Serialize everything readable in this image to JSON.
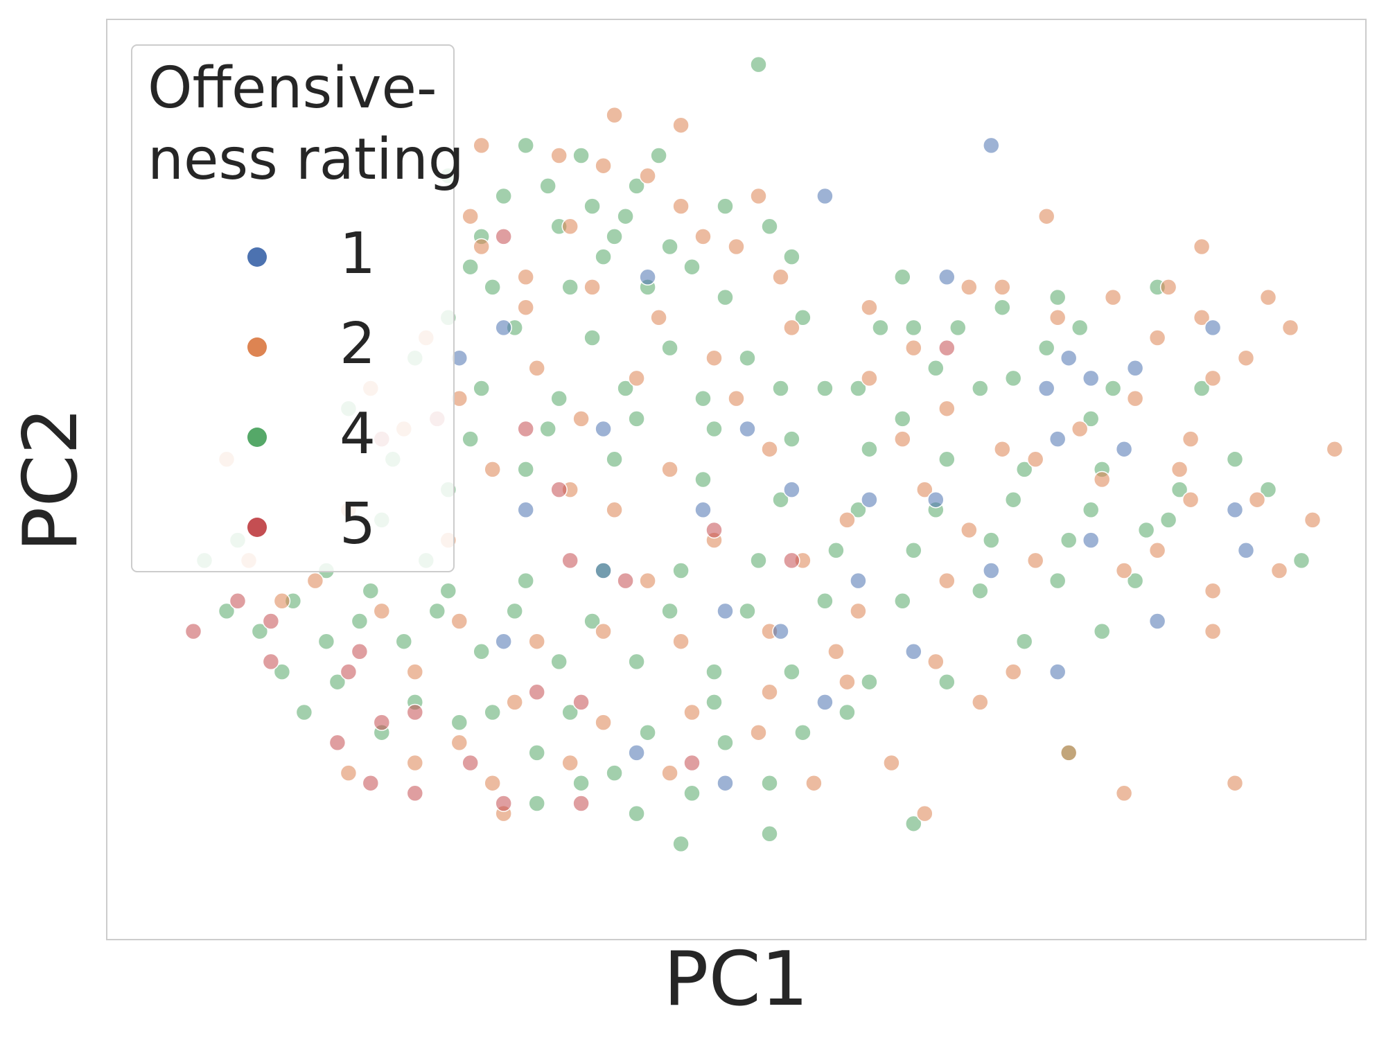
{
  "chart_data": {
    "type": "scatter",
    "title": "",
    "xlabel": "PC1",
    "ylabel": "PC2",
    "xlim": [
      -4.0,
      6.0
    ],
    "ylim": [
      -4.0,
      4.0
    ],
    "grid": false,
    "x_ticks": [],
    "y_ticks": [],
    "legend": {
      "title_lines": [
        "Offensive-",
        "ness rating"
      ],
      "placement": "top-left",
      "entries": [
        {
          "label": "1",
          "color": "#4c72b0"
        },
        {
          "label": "2",
          "color": "#dd8452"
        },
        {
          "label": "4",
          "color": "#55a868"
        },
        {
          "label": "5",
          "color": "#c44e52"
        }
      ]
    },
    "series": [
      {
        "name": "1",
        "color": "#4c72b0",
        "points": [
          [
            1.8,
            2.8
          ],
          [
            3.3,
            3.3
          ],
          [
            2.9,
            2.0
          ],
          [
            4.0,
            1.2
          ],
          [
            3.8,
            0.9
          ],
          [
            1.1,
            0.5
          ],
          [
            4.2,
            1.0
          ],
          [
            -0.2,
            0.5
          ],
          [
            0.7,
            -0.3
          ],
          [
            1.5,
            -0.1
          ],
          [
            2.2,
            -0.2
          ],
          [
            3.9,
            0.4
          ],
          [
            4.6,
            1.1
          ],
          [
            5.5,
            -0.3
          ],
          [
            4.2,
            -0.6
          ],
          [
            5.6,
            -0.7
          ],
          [
            3.3,
            -0.9
          ],
          [
            1.4,
            -1.5
          ],
          [
            2.1,
            -1.0
          ],
          [
            -1.1,
            1.5
          ],
          [
            0.2,
            2.0
          ],
          [
            -0.9,
            -0.3
          ],
          [
            0.9,
            -1.3
          ],
          [
            2.6,
            -1.7
          ],
          [
            3.9,
            -1.9
          ],
          [
            -0.2,
            -0.9
          ],
          [
            -1.5,
            1.2
          ],
          [
            0.9,
            -3.0
          ],
          [
            2.8,
            -0.2
          ],
          [
            1.8,
            -2.2
          ],
          [
            4.8,
            -1.4
          ],
          [
            5.3,
            1.5
          ],
          [
            4.5,
            0.3
          ],
          [
            -1.1,
            -1.6
          ],
          [
            0.1,
            -2.7
          ]
        ]
      },
      {
        "name": "2",
        "color": "#dd8452",
        "points": [
          [
            -0.1,
            3.6
          ],
          [
            -0.6,
            3.2
          ],
          [
            -0.2,
            3.1
          ],
          [
            0.2,
            3.0
          ],
          [
            -1.4,
            2.6
          ],
          [
            -1.3,
            2.3
          ],
          [
            -0.5,
            2.5
          ],
          [
            0.7,
            2.4
          ],
          [
            1.0,
            2.3
          ],
          [
            3.1,
            1.9
          ],
          [
            3.4,
            1.9
          ],
          [
            4.9,
            1.9
          ],
          [
            5.8,
            1.8
          ],
          [
            5.2,
            1.6
          ],
          [
            6.0,
            1.5
          ],
          [
            5.6,
            1.2
          ],
          [
            4.8,
            1.4
          ],
          [
            5.3,
            1.0
          ],
          [
            4.6,
            0.8
          ],
          [
            4.1,
            0.5
          ],
          [
            5.0,
            0.1
          ],
          [
            6.4,
            0.3
          ],
          [
            5.1,
            0.4
          ],
          [
            3.7,
            0.2
          ],
          [
            2.9,
            0.7
          ],
          [
            2.2,
            1.0
          ],
          [
            1.5,
            1.5
          ],
          [
            0.8,
            1.2
          ],
          [
            0.1,
            1.0
          ],
          [
            -0.8,
            1.1
          ],
          [
            -1.5,
            0.8
          ],
          [
            -2.0,
            0.5
          ],
          [
            -1.2,
            0.1
          ],
          [
            -0.5,
            -0.1
          ],
          [
            0.4,
            0.1
          ],
          [
            1.3,
            0.3
          ],
          [
            2.0,
            -0.4
          ],
          [
            2.7,
            -0.1
          ],
          [
            3.4,
            0.3
          ],
          [
            4.3,
            0.0
          ],
          [
            5.1,
            -0.2
          ],
          [
            5.7,
            -0.2
          ],
          [
            6.2,
            -0.4
          ],
          [
            5.9,
            -0.9
          ],
          [
            5.3,
            -1.1
          ],
          [
            4.5,
            -0.9
          ],
          [
            3.7,
            -0.8
          ],
          [
            2.9,
            -1.0
          ],
          [
            2.1,
            -1.3
          ],
          [
            1.3,
            -1.5
          ],
          [
            0.5,
            -1.6
          ],
          [
            -0.2,
            -1.5
          ],
          [
            -0.8,
            -1.6
          ],
          [
            -1.5,
            -1.4
          ],
          [
            -2.2,
            -1.3
          ],
          [
            -2.8,
            -1.0
          ],
          [
            -3.4,
            -0.8
          ],
          [
            -3.1,
            -1.2
          ],
          [
            -1.9,
            -1.9
          ],
          [
            -1.0,
            -2.2
          ],
          [
            -0.2,
            -2.4
          ],
          [
            0.6,
            -2.3
          ],
          [
            1.3,
            -2.1
          ],
          [
            2.0,
            -2.0
          ],
          [
            2.8,
            -1.8
          ],
          [
            3.5,
            -1.9
          ],
          [
            -0.5,
            -2.8
          ],
          [
            0.4,
            -2.9
          ],
          [
            1.2,
            -2.5
          ],
          [
            -1.5,
            -2.6
          ],
          [
            -1.2,
            -3.0
          ],
          [
            -1.9,
            -2.8
          ],
          [
            -1.1,
            -3.3
          ],
          [
            2.4,
            -2.8
          ],
          [
            1.7,
            -3.0
          ],
          [
            -2.5,
            -2.9
          ],
          [
            5.3,
            -1.5
          ],
          [
            4.8,
            -0.7
          ],
          [
            2.2,
            1.7
          ],
          [
            1.4,
            2.0
          ],
          [
            0.3,
            1.6
          ],
          [
            -0.4,
            0.6
          ],
          [
            0.8,
            -0.6
          ],
          [
            1.6,
            -0.8
          ],
          [
            -0.1,
            -0.3
          ],
          [
            1.0,
            0.8
          ],
          [
            2.5,
            0.4
          ],
          [
            3.1,
            -0.5
          ],
          [
            -1.8,
            1.4
          ],
          [
            -2.3,
            0.9
          ],
          [
            -0.9,
            1.7
          ],
          [
            -0.3,
            1.9
          ],
          [
            0.5,
            2.7
          ],
          [
            1.2,
            2.8
          ],
          [
            3.8,
            2.6
          ],
          [
            5.2,
            2.3
          ],
          [
            4.4,
            1.8
          ],
          [
            3.9,
            1.6
          ],
          [
            -2.5,
            -0.3
          ],
          [
            -3.6,
            0.2
          ],
          [
            -1.6,
            -0.6
          ],
          [
            0.2,
            -1.0
          ],
          [
            1.9,
            -1.7
          ],
          [
            3.2,
            -2.2
          ],
          [
            4.0,
            -2.7
          ],
          [
            5.5,
            -3.0
          ],
          [
            4.5,
            -3.1
          ],
          [
            2.7,
            -3.3
          ],
          [
            -1.3,
            3.3
          ],
          [
            0.5,
            3.5
          ],
          [
            -0.9,
            2.0
          ],
          [
            2.6,
            1.3
          ]
        ]
      },
      {
        "name": "4",
        "color": "#55a868",
        "points": [
          [
            1.2,
            4.1
          ],
          [
            -0.9,
            3.3
          ],
          [
            -0.4,
            3.2
          ],
          [
            -1.6,
            3.0
          ],
          [
            0.3,
            3.2
          ],
          [
            0.1,
            2.9
          ],
          [
            -0.3,
            2.7
          ],
          [
            -1.1,
            2.8
          ],
          [
            0.9,
            2.7
          ],
          [
            -0.6,
            2.5
          ],
          [
            0.0,
            2.6
          ],
          [
            -1.3,
            2.4
          ],
          [
            0.4,
            2.3
          ],
          [
            -0.2,
            2.2
          ],
          [
            1.5,
            2.2
          ],
          [
            2.5,
            2.0
          ],
          [
            3.4,
            1.7
          ],
          [
            2.6,
            1.5
          ],
          [
            3.0,
            1.5
          ],
          [
            3.9,
            1.8
          ],
          [
            4.8,
            1.9
          ],
          [
            3.8,
            1.3
          ],
          [
            4.4,
            0.9
          ],
          [
            3.2,
            0.9
          ],
          [
            2.5,
            0.6
          ],
          [
            1.8,
            0.9
          ],
          [
            1.1,
            1.2
          ],
          [
            0.4,
            1.3
          ],
          [
            -0.3,
            1.4
          ],
          [
            -1.0,
            1.5
          ],
          [
            -1.6,
            1.6
          ],
          [
            -1.9,
            1.2
          ],
          [
            -1.3,
            0.9
          ],
          [
            -0.6,
            0.8
          ],
          [
            0.1,
            0.6
          ],
          [
            0.8,
            0.5
          ],
          [
            1.5,
            0.4
          ],
          [
            2.2,
            0.3
          ],
          [
            2.9,
            0.2
          ],
          [
            3.6,
            0.1
          ],
          [
            4.3,
            0.1
          ],
          [
            5.0,
            -0.1
          ],
          [
            5.5,
            0.2
          ],
          [
            4.7,
            -0.5
          ],
          [
            4.0,
            -0.6
          ],
          [
            3.3,
            -0.6
          ],
          [
            2.6,
            -0.7
          ],
          [
            1.9,
            -0.7
          ],
          [
            1.2,
            -0.8
          ],
          [
            0.5,
            -0.9
          ],
          [
            -0.2,
            -0.9
          ],
          [
            -0.9,
            -1.0
          ],
          [
            -1.6,
            -1.1
          ],
          [
            -2.3,
            -1.1
          ],
          [
            -3.0,
            -1.2
          ],
          [
            -3.6,
            -1.3
          ],
          [
            -3.3,
            -1.5
          ],
          [
            -2.7,
            -1.6
          ],
          [
            -2.0,
            -1.6
          ],
          [
            -1.3,
            -1.7
          ],
          [
            -0.6,
            -1.8
          ],
          [
            0.1,
            -1.8
          ],
          [
            0.8,
            -1.9
          ],
          [
            1.5,
            -1.9
          ],
          [
            2.2,
            -2.0
          ],
          [
            2.9,
            -2.0
          ],
          [
            3.6,
            -1.6
          ],
          [
            4.3,
            -1.5
          ],
          [
            -2.6,
            -2.0
          ],
          [
            -1.9,
            -2.2
          ],
          [
            -1.2,
            -2.3
          ],
          [
            -0.5,
            -2.3
          ],
          [
            0.2,
            -2.5
          ],
          [
            0.9,
            -2.6
          ],
          [
            1.6,
            -2.5
          ],
          [
            -2.2,
            -2.5
          ],
          [
            -1.5,
            -2.4
          ],
          [
            -0.8,
            -2.7
          ],
          [
            -0.1,
            -2.9
          ],
          [
            0.6,
            -3.1
          ],
          [
            1.3,
            -3.0
          ],
          [
            -0.8,
            -3.2
          ],
          [
            0.1,
            -3.3
          ],
          [
            0.5,
            -3.6
          ],
          [
            1.3,
            -3.5
          ],
          [
            2.6,
            -3.4
          ],
          [
            -3.1,
            -1.9
          ],
          [
            -2.9,
            -2.3
          ],
          [
            -3.8,
            -0.8
          ],
          [
            -3.5,
            -0.6
          ],
          [
            -2.7,
            -0.9
          ],
          [
            -2.2,
            -0.4
          ],
          [
            -1.6,
            -0.1
          ],
          [
            -0.9,
            0.1
          ],
          [
            -0.1,
            0.2
          ],
          [
            0.7,
            0.0
          ],
          [
            1.4,
            -0.2
          ],
          [
            2.1,
            -0.3
          ],
          [
            2.8,
            -0.3
          ],
          [
            3.5,
            -0.2
          ],
          [
            4.2,
            -0.3
          ],
          [
            4.9,
            -0.4
          ],
          [
            5.8,
            -0.1
          ],
          [
            6.1,
            -0.8
          ],
          [
            4.6,
            -1.0
          ],
          [
            3.9,
            -1.0
          ],
          [
            3.2,
            -1.1
          ],
          [
            2.5,
            -1.2
          ],
          [
            1.8,
            -1.2
          ],
          [
            1.1,
            -1.3
          ],
          [
            0.4,
            -1.3
          ],
          [
            -0.3,
            -1.4
          ],
          [
            -1.0,
            -1.3
          ],
          [
            -1.7,
            -1.3
          ],
          [
            -2.4,
            -1.4
          ],
          [
            -2.1,
            0.2
          ],
          [
            -1.4,
            0.4
          ],
          [
            -0.7,
            0.5
          ],
          [
            0.0,
            0.9
          ],
          [
            0.7,
            0.8
          ],
          [
            1.4,
            0.9
          ],
          [
            2.1,
            0.9
          ],
          [
            2.8,
            1.1
          ],
          [
            3.5,
            1.0
          ],
          [
            4.2,
            0.6
          ],
          [
            -0.5,
            1.9
          ],
          [
            0.2,
            1.9
          ],
          [
            0.9,
            1.8
          ],
          [
            1.6,
            1.6
          ],
          [
            2.3,
            1.5
          ],
          [
            -1.2,
            1.9
          ],
          [
            -0.1,
            2.4
          ],
          [
            0.6,
            2.1
          ],
          [
            1.3,
            2.5
          ],
          [
            -0.7,
            2.9
          ],
          [
            -1.4,
            2.1
          ],
          [
            4.1,
            1.5
          ],
          [
            2.0,
            -2.3
          ],
          [
            -0.4,
            -3.0
          ],
          [
            4.0,
            -2.7
          ],
          [
            0.8,
            -2.2
          ],
          [
            -1.8,
            -0.8
          ],
          [
            -2.5,
            0.7
          ],
          [
            5.2,
            0.9
          ]
        ]
      },
      {
        "name": "5",
        "color": "#c44e52",
        "points": [
          [
            -1.1,
            2.4
          ],
          [
            2.9,
            1.3
          ],
          [
            -0.9,
            0.5
          ],
          [
            -0.6,
            -0.1
          ],
          [
            -0.5,
            -0.8
          ],
          [
            0.8,
            -0.5
          ],
          [
            -2.2,
            0.4
          ],
          [
            -3.9,
            -1.5
          ],
          [
            -3.5,
            -1.2
          ],
          [
            -3.2,
            -1.4
          ],
          [
            -2.4,
            -1.7
          ],
          [
            -3.2,
            -1.8
          ],
          [
            -2.5,
            -1.9
          ],
          [
            -0.4,
            -2.2
          ],
          [
            -1.9,
            -2.3
          ],
          [
            -2.2,
            -2.4
          ],
          [
            -2.6,
            -2.6
          ],
          [
            -1.4,
            -2.8
          ],
          [
            -1.9,
            -3.1
          ],
          [
            -1.1,
            -3.2
          ],
          [
            -0.8,
            -2.1
          ],
          [
            0.6,
            -2.8
          ],
          [
            -2.3,
            -3.0
          ],
          [
            -0.4,
            -3.2
          ],
          [
            1.5,
            -0.8
          ],
          [
            -1.7,
            0.6
          ],
          [
            0.0,
            -1.0
          ]
        ]
      }
    ]
  }
}
